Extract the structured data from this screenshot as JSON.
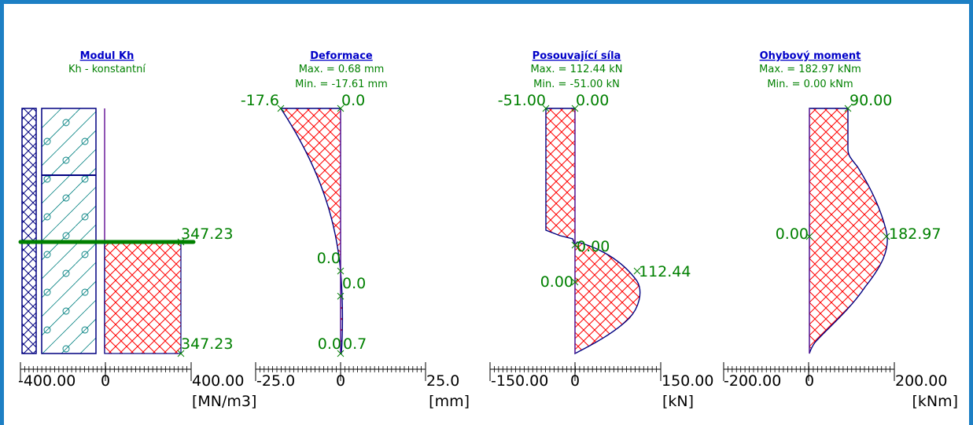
{
  "colors": {
    "frame": "#1d7fc4",
    "title": "#0000c8",
    "label": "#008000",
    "outline": "#000080",
    "hatch": "#ff0000",
    "soil_hatch": "#008080",
    "anchor": "#008000"
  },
  "panels": [
    {
      "id": "modul",
      "title": "Modul Kh",
      "subtitle1": "Kh - konstantní",
      "axis_min": "-400.00",
      "axis_zero": "0",
      "axis_max": "400.00",
      "unit": "[MN/m3]",
      "labels": [
        "347.23",
        "347.23"
      ]
    },
    {
      "id": "deformace",
      "title": "Deformace",
      "subtitle1": "Max. = 0.68 mm",
      "subtitle2": "Min. = -17.61 mm",
      "axis_min": "-25.0",
      "axis_zero": "0",
      "axis_max": "25.0",
      "unit": "[mm]",
      "labels": [
        "-17.6",
        "0.0",
        "0.0",
        "0.0",
        "0.0",
        "0.7"
      ]
    },
    {
      "id": "posouvajici",
      "title": "Posouvající síla",
      "subtitle1": "Max. = 112.44 kN",
      "subtitle2": "Min. = -51.00 kN",
      "axis_min": "-150.00",
      "axis_zero": "0",
      "axis_max": "150.00",
      "unit": "[kN]",
      "labels": [
        "-51.00",
        "0.00",
        "0.00",
        "112.44",
        "0.00"
      ]
    },
    {
      "id": "ohybovy",
      "title": "Ohybový moment",
      "subtitle1": "Max. = 182.97 kNm",
      "subtitle2": "Min. = 0.00 kNm",
      "axis_min": "-200.00",
      "axis_zero": "0",
      "axis_max": "200.00",
      "unit": "[kNm]",
      "labels": [
        "90.00",
        "0.00",
        "182.97"
      ]
    }
  ],
  "chart_data": [
    {
      "type": "area",
      "title": "Modul Kh",
      "subtitle": "Kh - konstantní",
      "xlabel": "[MN/m3]",
      "xlim": [
        -400,
        400
      ],
      "series": [
        {
          "x": [
            347.23,
            347.23
          ],
          "depth_fraction": [
            0.55,
            1.0
          ]
        }
      ]
    },
    {
      "type": "area",
      "title": "Deformace",
      "subtitle": [
        "Max. = 0.68 mm",
        "Min. = -17.61 mm"
      ],
      "xlabel": "[mm]",
      "xlim": [
        -25,
        25
      ],
      "series": [
        {
          "depth_fraction": [
            0.0,
            0.1,
            0.2,
            0.3,
            0.4,
            0.5,
            0.6,
            0.65,
            0.72,
            0.8,
            0.9,
            1.0
          ],
          "x": [
            -17.6,
            -14.5,
            -11.2,
            -8.0,
            -5.2,
            -2.7,
            -0.7,
            0.0,
            0.0,
            0.4,
            0.7,
            0.5
          ]
        }
      ]
    },
    {
      "type": "area",
      "title": "Posouvající síla",
      "subtitle": [
        "Max. = 112.44 kN",
        "Min. = -51.00 kN"
      ],
      "xlabel": "[kN]",
      "xlim": [
        -150,
        150
      ],
      "series": [
        {
          "depth_fraction": [
            0.0,
            0.5,
            0.55,
            0.57,
            0.6,
            0.7,
            0.75,
            0.83,
            0.9,
            0.96,
            1.0
          ],
          "x": [
            -51,
            -51,
            -35,
            0,
            5,
            80,
            110,
            112.44,
            85,
            30,
            0
          ]
        }
      ]
    },
    {
      "type": "area",
      "title": "Ohybový moment",
      "subtitle": [
        "Max. = 182.97 kNm",
        "Min. = 0.00 kNm"
      ],
      "xlabel": "[kNm]",
      "xlim": [
        -200,
        200
      ],
      "series": [
        {
          "depth_fraction": [
            0.0,
            0.2,
            0.28,
            0.45,
            0.55,
            0.6,
            0.75,
            0.9,
            1.0
          ],
          "x": [
            90,
            90,
            100,
            160,
            182.97,
            175,
            110,
            30,
            0
          ]
        }
      ]
    }
  ]
}
